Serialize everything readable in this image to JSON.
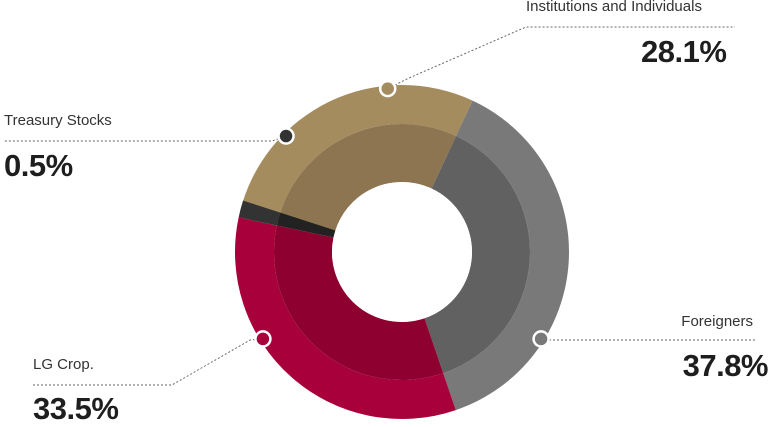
{
  "chart_data": {
    "type": "pie",
    "slices": [
      {
        "label": "Institutions and  Individuals",
        "value": 28.1,
        "display": "28.1%",
        "color": "#a48c5f",
        "inner_color": "#8c7550"
      },
      {
        "label": "Foreigners",
        "value": 37.8,
        "display": "37.8%",
        "color": "#797979",
        "inner_color": "#616161"
      },
      {
        "label": "LG Crop.",
        "value": 33.5,
        "display": "33.5%",
        "color": "#a8003a",
        "inner_color": "#8e0030"
      },
      {
        "label": "Treasury Stocks",
        "value": 0.5,
        "display": "0.5%",
        "color": "#333333",
        "inner_color": "#222222"
      }
    ],
    "style": "donut"
  }
}
